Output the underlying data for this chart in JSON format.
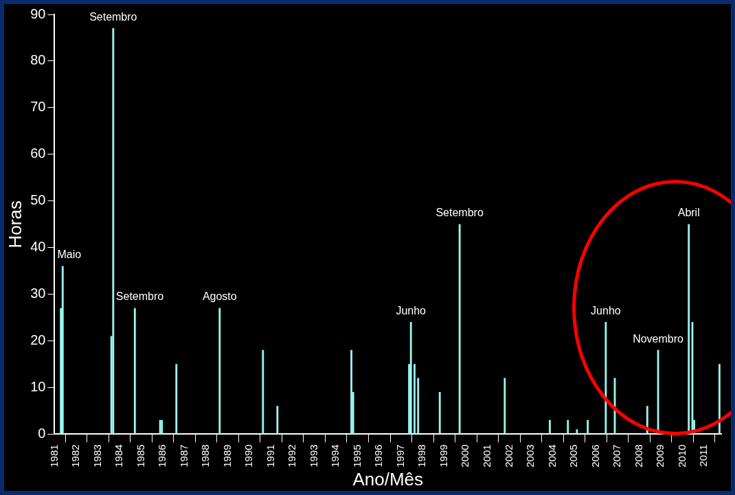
{
  "chart_data": {
    "type": "bar",
    "xlabel": "Ano/Mês",
    "ylabel": "Horas",
    "x": [
      "1981-04",
      "1981-05",
      "1983-08",
      "1983-09",
      "1984-09",
      "1985-11",
      "1985-12",
      "1986-08",
      "1988-08",
      "1990-08",
      "1991-04",
      "1994-09",
      "1994-10",
      "1997-05",
      "1997-06",
      "1997-08",
      "1997-10",
      "1998-10",
      "1999-09",
      "2001-10",
      "2003-11",
      "2004-09",
      "2005-02",
      "2005-08",
      "2006-06",
      "2006-11",
      "2008-05",
      "2008-11",
      "2010-04",
      "2010-06",
      "2010-07",
      "2011-09"
    ],
    "values": [
      27,
      36,
      21,
      87,
      27,
      3,
      3,
      15,
      27,
      18,
      6,
      18,
      9,
      15,
      24,
      15,
      12,
      9,
      45,
      12,
      3,
      3,
      1,
      3,
      24,
      12,
      6,
      18,
      45,
      24,
      3,
      15
    ],
    "color": "#99f5f0",
    "xlim": [
      "1981",
      "2011-10"
    ],
    "xticks": [
      "1981",
      "1982",
      "1983",
      "1984",
      "1985",
      "1986",
      "1987",
      "1988",
      "1989",
      "1990",
      "1991",
      "1992",
      "1993",
      "1994",
      "1995",
      "1996",
      "1997",
      "1998",
      "1999",
      "2000",
      "2001",
      "2002",
      "2003",
      "2004",
      "2005",
      "2006",
      "2007",
      "2008",
      "2009",
      "2010",
      "2011"
    ],
    "ylim": [
      0,
      90
    ],
    "yticks": [
      0,
      10,
      20,
      30,
      40,
      50,
      60,
      70,
      80,
      90
    ],
    "grid": false,
    "legend": false,
    "annotations": [
      {
        "text": "Maio",
        "x": "1981-05",
        "y": 36
      },
      {
        "text": "Setembro",
        "x": "1983-09",
        "y": 87
      },
      {
        "text": "Setembro",
        "x": "1984-09",
        "y": 27
      },
      {
        "text": "Agosto",
        "x": "1988-08",
        "y": 27
      },
      {
        "text": "Junho",
        "x": "1997-06",
        "y": 24
      },
      {
        "text": "Setembro",
        "x": "1999-09",
        "y": 45
      },
      {
        "text": "Junho",
        "x": "2006-06",
        "y": 24
      },
      {
        "text": "Novembro",
        "x": "2008-11",
        "y": 18
      },
      {
        "text": "Abril",
        "x": "2010-04",
        "y": 45
      }
    ]
  }
}
